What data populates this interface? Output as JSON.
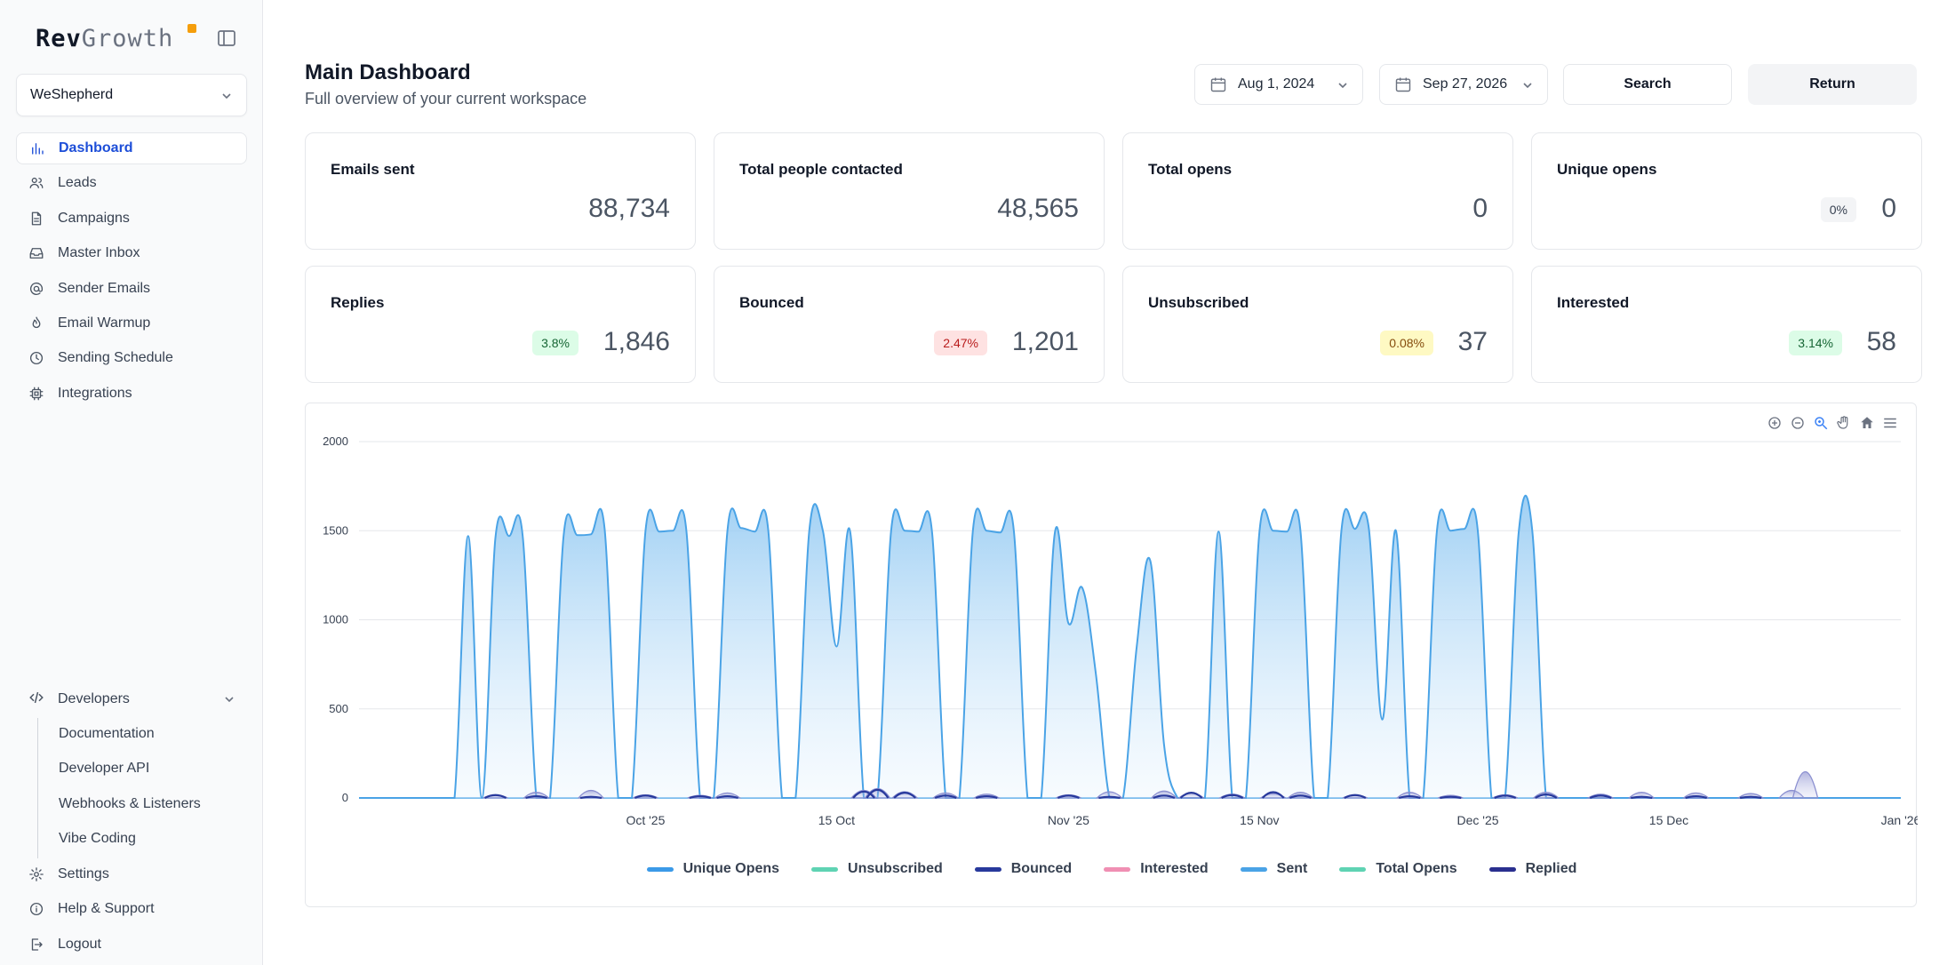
{
  "brand": {
    "name_a": "Rev",
    "name_b": "Growth"
  },
  "workspace": {
    "selected": "WeShepherd"
  },
  "nav": [
    {
      "id": "dashboard",
      "label": "Dashboard",
      "icon": "bar-chart-icon",
      "active": true
    },
    {
      "id": "leads",
      "label": "Leads",
      "icon": "users-icon"
    },
    {
      "id": "campaigns",
      "label": "Campaigns",
      "icon": "file-icon"
    },
    {
      "id": "master-inbox",
      "label": "Master Inbox",
      "icon": "inbox-icon"
    },
    {
      "id": "sender-emails",
      "label": "Sender Emails",
      "icon": "at-sign-icon"
    },
    {
      "id": "email-warmup",
      "label": "Email Warmup",
      "icon": "flame-icon"
    },
    {
      "id": "sending-schedule",
      "label": "Sending Schedule",
      "icon": "clock-icon"
    },
    {
      "id": "integrations",
      "label": "Integrations",
      "icon": "chip-icon"
    }
  ],
  "developers": {
    "label": "Developers",
    "items": [
      "Documentation",
      "Developer API",
      "Webhooks & Listeners",
      "Vibe Coding"
    ]
  },
  "bottom_nav": [
    {
      "id": "settings",
      "label": "Settings",
      "icon": "gear-icon"
    },
    {
      "id": "help",
      "label": "Help & Support",
      "icon": "info-icon"
    },
    {
      "id": "logout",
      "label": "Logout",
      "icon": "logout-icon"
    }
  ],
  "header": {
    "title": "Main Dashboard",
    "subtitle": "Full overview of your current workspace",
    "start_date": "Aug 1, 2024",
    "end_date": "Sep 27, 2026",
    "search_label": "Search",
    "return_label": "Return"
  },
  "stats": [
    {
      "title": "Emails sent",
      "value": "88,734",
      "badge": ""
    },
    {
      "title": "Total people contacted",
      "value": "48,565",
      "badge": ""
    },
    {
      "title": "Total opens",
      "value": "0",
      "badge": ""
    },
    {
      "title": "Unique opens",
      "value": "0",
      "badge": "0%",
      "badge_tone": "gray"
    },
    {
      "title": "Replies",
      "value": "1,846",
      "badge": "3.8%",
      "badge_tone": "green"
    },
    {
      "title": "Bounced",
      "value": "1,201",
      "badge": "2.47%",
      "badge_tone": "red"
    },
    {
      "title": "Unsubscribed",
      "value": "37",
      "badge": "0.08%",
      "badge_tone": "yellow"
    },
    {
      "title": "Interested",
      "value": "58",
      "badge": "3.14%",
      "badge_tone": "green"
    }
  ],
  "chart_data": {
    "type": "area",
    "y_ticks": [
      "2000",
      "1500",
      "1000",
      "500",
      "0"
    ],
    "ylim": [
      0,
      2000
    ],
    "x_start": "2025-09-10",
    "x_end": "2026-01-01",
    "x_ticks": [
      {
        "label": "Oct '25",
        "date": "2025-10-01"
      },
      {
        "label": "15 Oct",
        "date": "2025-10-15"
      },
      {
        "label": "Nov '25",
        "date": "2025-11-01"
      },
      {
        "label": "15 Nov",
        "date": "2025-11-15"
      },
      {
        "label": "Dec '25",
        "date": "2025-12-01"
      },
      {
        "label": "15 Dec",
        "date": "2025-12-15"
      },
      {
        "label": "Jan '26",
        "date": "2026-01-01"
      }
    ],
    "grid": true,
    "legend_position": "bottom",
    "series": [
      {
        "name": "Unique Opens",
        "color": "#3b9ae8",
        "dates": [],
        "values": []
      },
      {
        "name": "Unsubscribed",
        "color": "#5fd3b3",
        "dates": [],
        "values": []
      },
      {
        "name": "Bounced",
        "color": "#28399c",
        "dates": [
          "2025-09-20",
          "2025-09-23",
          "2025-09-27",
          "2025-10-01",
          "2025-10-05",
          "2025-10-07",
          "2025-10-17",
          "2025-10-18",
          "2025-10-20",
          "2025-10-23",
          "2025-10-26",
          "2025-11-01",
          "2025-11-04",
          "2025-11-08",
          "2025-11-10",
          "2025-11-13",
          "2025-11-16",
          "2025-11-18",
          "2025-11-22",
          "2025-11-26",
          "2025-11-29",
          "2025-12-03",
          "2025-12-06",
          "2025-12-10",
          "2025-12-13",
          "2025-12-17",
          "2025-12-21"
        ],
        "values": [
          25,
          15,
          10,
          20,
          15,
          15,
          55,
          70,
          45,
          20,
          15,
          20,
          10,
          20,
          45,
          25,
          50,
          20,
          25,
          15,
          10,
          20,
          30,
          20,
          10,
          15,
          10
        ]
      },
      {
        "name": "Interested",
        "color": "#f08fb3",
        "dates": [],
        "values": []
      },
      {
        "name": "Sent",
        "color": "#4aa3e6",
        "dates": [
          "2025-09-10",
          "2025-09-11",
          "2025-09-12",
          "2025-09-13",
          "2025-09-14",
          "2025-09-15",
          "2025-09-16",
          "2025-09-17",
          "2025-09-18",
          "2025-09-19",
          "2025-09-20",
          "2025-09-21",
          "2025-09-22",
          "2025-09-23",
          "2025-09-24",
          "2025-09-25",
          "2025-09-26",
          "2025-09-27",
          "2025-09-28",
          "2025-09-29",
          "2025-09-30",
          "2025-10-01",
          "2025-10-02",
          "2025-10-03",
          "2025-10-04",
          "2025-10-05",
          "2025-10-06",
          "2025-10-07",
          "2025-10-08",
          "2025-10-09",
          "2025-10-10",
          "2025-10-11",
          "2025-10-12",
          "2025-10-13",
          "2025-10-14",
          "2025-10-15",
          "2025-10-16",
          "2025-10-17",
          "2025-10-18",
          "2025-10-19",
          "2025-10-20",
          "2025-10-21",
          "2025-10-22",
          "2025-10-23",
          "2025-10-24",
          "2025-10-25",
          "2025-10-26",
          "2025-10-27",
          "2025-10-28",
          "2025-10-29",
          "2025-10-30",
          "2025-10-31",
          "2025-11-01",
          "2025-11-02",
          "2025-11-03",
          "2025-11-04",
          "2025-11-05",
          "2025-11-06",
          "2025-11-07",
          "2025-11-08",
          "2025-11-09",
          "2025-11-10",
          "2025-11-11",
          "2025-11-12",
          "2025-11-13",
          "2025-11-14",
          "2025-11-15",
          "2025-11-16",
          "2025-11-17",
          "2025-11-18",
          "2025-11-19",
          "2025-11-20",
          "2025-11-21",
          "2025-11-22",
          "2025-11-23",
          "2025-11-24",
          "2025-11-25",
          "2025-11-26",
          "2025-11-27",
          "2025-11-28",
          "2025-11-29",
          "2025-11-30",
          "2025-12-01",
          "2025-12-02",
          "2025-12-03",
          "2025-12-04",
          "2025-12-05",
          "2025-12-06",
          "2025-12-07",
          "2025-12-08",
          "2025-12-09",
          "2025-12-10",
          "2025-12-11",
          "2025-12-12",
          "2025-12-13",
          "2025-12-14",
          "2025-12-15",
          "2025-12-16",
          "2025-12-17",
          "2025-12-18",
          "2025-12-19",
          "2025-12-20",
          "2025-12-21",
          "2025-12-22",
          "2025-12-23",
          "2025-12-24",
          "2025-12-25",
          "2025-12-26",
          "2025-12-27",
          "2025-12-28",
          "2025-12-29",
          "2025-12-30",
          "2025-12-31",
          "2026-01-01"
        ],
        "values": [
          0,
          0,
          0,
          0,
          0,
          0,
          0,
          0,
          1470,
          0,
          1460,
          1470,
          1470,
          0,
          0,
          1475,
          1475,
          1480,
          1510,
          0,
          0,
          1500,
          1495,
          1500,
          1495,
          0,
          0,
          1500,
          1515,
          1495,
          1500,
          0,
          0,
          1500,
          1500,
          850,
          1495,
          0,
          0,
          1500,
          1500,
          1495,
          1490,
          0,
          0,
          1505,
          1500,
          1490,
          1495,
          0,
          0,
          1490,
          980,
          1180,
          700,
          0,
          0,
          850,
          1330,
          300,
          0,
          0,
          0,
          1495,
          0,
          0,
          1500,
          1500,
          1495,
          1500,
          0,
          0,
          1500,
          1510,
          1520,
          440,
          1500,
          0,
          0,
          1500,
          1500,
          1510,
          1500,
          0,
          0,
          1495,
          1495,
          0,
          0,
          0,
          0,
          0,
          0,
          0,
          0,
          0,
          0,
          0,
          0,
          0,
          0,
          0,
          0,
          0,
          0,
          0,
          0,
          0,
          0,
          0,
          0,
          0,
          0,
          0
        ]
      },
      {
        "name": "Total Opens",
        "color": "#5fd3b3",
        "dates": [],
        "values": []
      },
      {
        "name": "Replied",
        "color": "#2a2f8f",
        "dates": [
          "2025-09-20",
          "2025-09-23",
          "2025-09-27",
          "2025-10-01",
          "2025-10-05",
          "2025-10-07",
          "2025-10-17",
          "2025-10-18",
          "2025-10-20",
          "2025-10-23",
          "2025-10-26",
          "2025-11-01",
          "2025-11-04",
          "2025-11-08",
          "2025-11-10",
          "2025-11-13",
          "2025-11-16",
          "2025-11-18",
          "2025-11-22",
          "2025-11-26",
          "2025-11-29",
          "2025-12-03",
          "2025-12-06",
          "2025-12-10",
          "2025-12-13",
          "2025-12-17",
          "2025-12-21",
          "2025-12-24",
          "2025-12-25"
        ],
        "values": [
          20,
          45,
          60,
          25,
          20,
          40,
          60,
          75,
          50,
          40,
          30,
          25,
          50,
          55,
          40,
          30,
          35,
          45,
          20,
          45,
          20,
          25,
          45,
          30,
          45,
          40,
          35,
          60,
          210
        ]
      }
    ]
  }
}
